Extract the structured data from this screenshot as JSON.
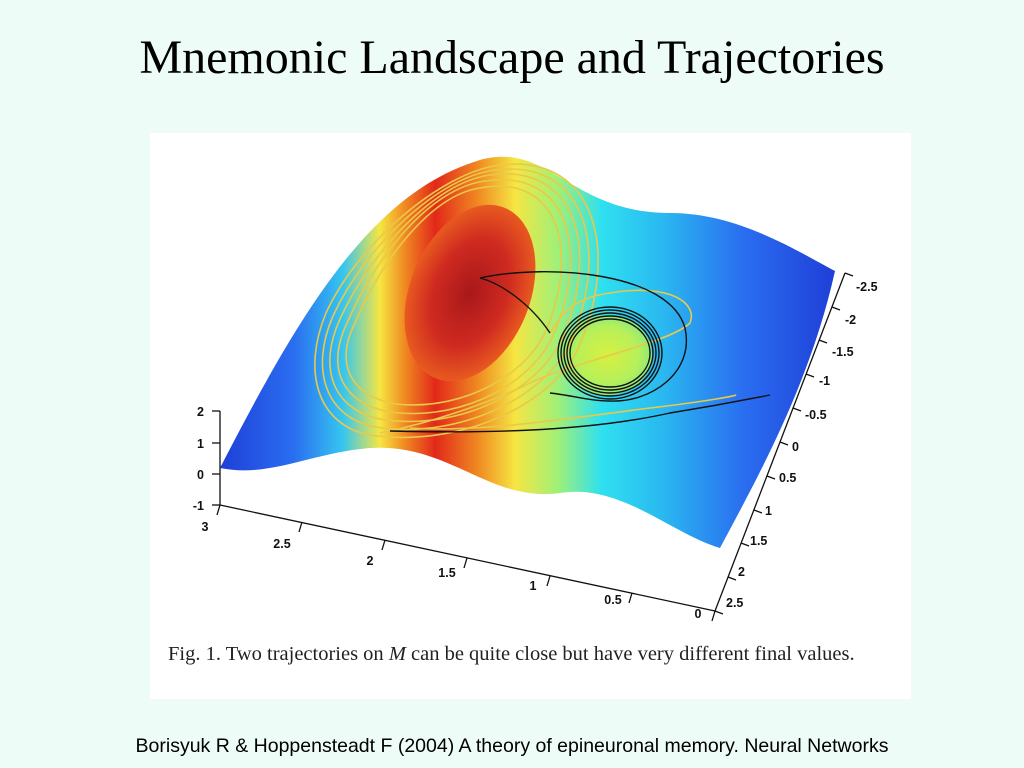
{
  "slide": {
    "title": "Mnemonic Landscape and Trajectories",
    "citation": "Borisyuk R & Hoppensteadt F (2004) A theory of epineuronal memory. Neural Networks"
  },
  "figure": {
    "caption_prefix": "Fig. 1. Two trajectories on ",
    "caption_symbol": "M",
    "caption_suffix": " can be quite close but have very different final values.",
    "z_ticks": [
      "2",
      "1",
      "0",
      "-1"
    ],
    "x_ticks": [
      "3",
      "2.5",
      "2",
      "1.5",
      "1",
      "0.5",
      "0"
    ],
    "y_ticks": [
      "-2.5",
      "-2",
      "-1.5",
      "-1",
      "-0.5",
      "0",
      "0.5",
      "1",
      "1.5",
      "2",
      "2.5"
    ],
    "colors": {
      "low": "#1f3fd8",
      "mid": "#2fe0f0",
      "midhigh": "#f6e642",
      "high": "#e2281a",
      "peak": "#b0201f",
      "trajectory_a": "#e9c94a",
      "trajectory_b": "#111111"
    }
  }
}
